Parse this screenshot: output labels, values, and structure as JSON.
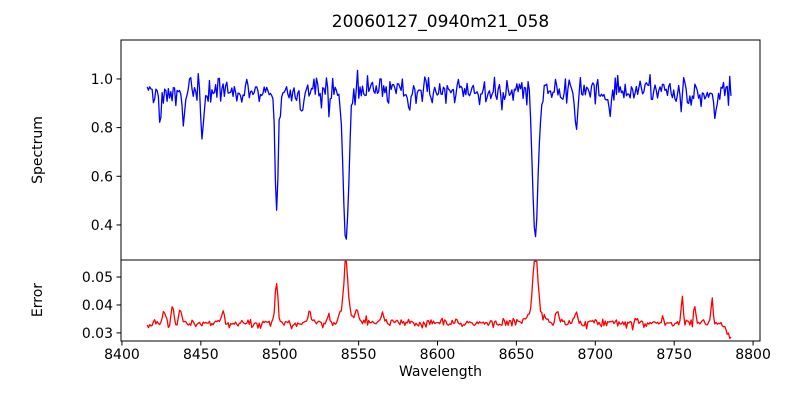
{
  "figure": {
    "background": "#ffffff",
    "spine_color": "#000000"
  },
  "chart_data": {
    "type": "line",
    "title": "20060127_0940m21_058",
    "xlabel": "Wavelength",
    "xlim": [
      8399.4,
      8804.4
    ],
    "x_start": 8416,
    "x_end": 8786,
    "n_points": 470,
    "x_ticks": [
      8400,
      8450,
      8500,
      8550,
      8600,
      8650,
      8700,
      8750,
      8800
    ],
    "x_tick_labels": [
      "8400",
      "8450",
      "8500",
      "8550",
      "8600",
      "8650",
      "8700",
      "8750",
      "8800"
    ],
    "grid": false,
    "legend": "none",
    "panels": [
      {
        "name": "spectrum",
        "ylabel": "Spectrum",
        "color": "#0000ff",
        "ylim": [
          0.256,
          1.16
        ],
        "y_ticks": [
          0.4,
          0.6,
          0.8,
          1.0
        ],
        "y_tick_labels": [
          "0.4",
          "0.6",
          "0.8",
          "1.0"
        ],
        "continuum_level": 0.95,
        "noise_sigma": 0.028,
        "absorption_lines": [
          {
            "center": 8498,
            "depth": 0.48,
            "width": 1.1,
            "min_flux": 0.47
          },
          {
            "center": 8542,
            "depth": 0.62,
            "width": 1.8,
            "min_flux": 0.33
          },
          {
            "center": 8662,
            "depth": 0.61,
            "width": 1.7,
            "min_flux": 0.34
          },
          {
            "center": 8424,
            "depth": 0.1,
            "width": 0.9
          },
          {
            "center": 8439,
            "depth": 0.13,
            "width": 0.9
          },
          {
            "center": 8451,
            "depth": 0.17,
            "width": 0.9
          },
          {
            "center": 8514,
            "depth": 0.08,
            "width": 0.8
          },
          {
            "center": 8531,
            "depth": 0.07,
            "width": 0.8
          },
          {
            "center": 8582,
            "depth": 0.11,
            "width": 0.8
          },
          {
            "center": 8611,
            "depth": 0.08,
            "width": 0.8
          },
          {
            "center": 8641,
            "depth": 0.09,
            "width": 0.8
          },
          {
            "center": 8688,
            "depth": 0.17,
            "width": 0.9
          },
          {
            "center": 8709,
            "depth": 0.07,
            "width": 0.8
          },
          {
            "center": 8761,
            "depth": 0.09,
            "width": 0.8
          },
          {
            "center": 8776,
            "depth": 0.12,
            "width": 0.8
          }
        ]
      },
      {
        "name": "error",
        "ylabel": "Error",
        "color": "#ff0000",
        "ylim": [
          0.0271,
          0.0561
        ],
        "y_ticks": [
          0.03,
          0.04,
          0.05
        ],
        "y_tick_labels": [
          "0.03",
          "0.04",
          "0.05"
        ],
        "baseline_level": 0.0335,
        "noise_sigma": 0.0007,
        "peaks": [
          {
            "center": 8498,
            "height": 0.015,
            "width": 0.9,
            "peak_value": 0.0485
          },
          {
            "center": 8542,
            "height": 0.019,
            "width": 1.3,
            "peak_value": 0.0525
          },
          {
            "center": 8542,
            "height": 0.003,
            "width": 4.5
          },
          {
            "center": 8662,
            "height": 0.022,
            "width": 1.5,
            "peak_value": 0.0555
          },
          {
            "center": 8662,
            "height": 0.004,
            "width": 5.0
          },
          {
            "center": 8427,
            "height": 0.0045,
            "width": 0.8
          },
          {
            "center": 8432,
            "height": 0.005,
            "width": 0.8
          },
          {
            "center": 8437,
            "height": 0.0045,
            "width": 0.8
          },
          {
            "center": 8464,
            "height": 0.0045,
            "width": 0.9
          },
          {
            "center": 8519,
            "height": 0.004,
            "width": 0.8
          },
          {
            "center": 8531,
            "height": 0.003,
            "width": 0.8
          },
          {
            "center": 8549,
            "height": 0.004,
            "width": 0.9
          },
          {
            "center": 8565,
            "height": 0.0035,
            "width": 0.9
          },
          {
            "center": 8676,
            "height": 0.005,
            "width": 1.0
          },
          {
            "center": 8688,
            "height": 0.004,
            "width": 0.9
          },
          {
            "center": 8743,
            "height": 0.003,
            "width": 0.8
          },
          {
            "center": 8755,
            "height": 0.0085,
            "width": 0.7
          },
          {
            "center": 8763,
            "height": 0.0055,
            "width": 0.7
          },
          {
            "center": 8774,
            "height": 0.009,
            "width": 0.7
          }
        ],
        "end_drop_value": 0.028
      }
    ]
  }
}
